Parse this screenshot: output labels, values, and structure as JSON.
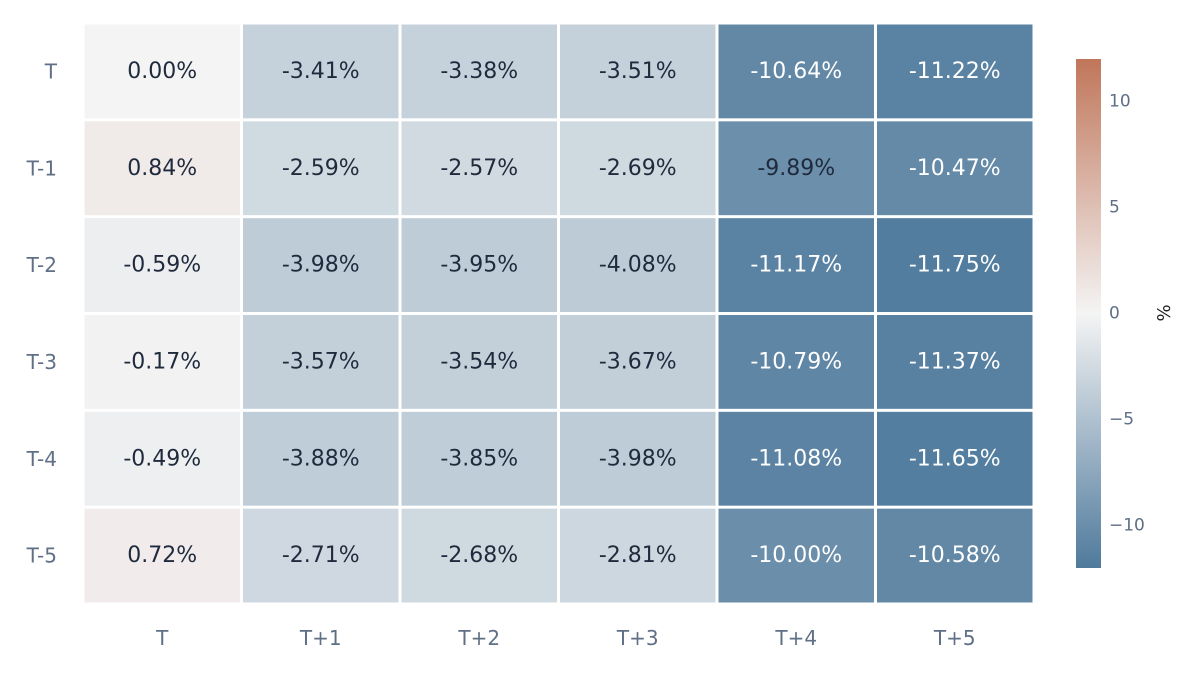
{
  "chart_data": {
    "type": "heatmap",
    "title": "",
    "xlabel": "",
    "ylabel": "",
    "x_labels": [
      "T",
      "T+1",
      "T+2",
      "T+3",
      "T+4",
      "T+5"
    ],
    "y_labels": [
      "T",
      "T-1",
      "T-2",
      "T-3",
      "T-4",
      "T-5"
    ],
    "values": [
      [
        0.0,
        -3.41,
        -3.38,
        -3.51,
        -10.64,
        -11.22
      ],
      [
        0.84,
        -2.59,
        -2.57,
        -2.69,
        -9.89,
        -10.47
      ],
      [
        -0.59,
        -3.98,
        -3.95,
        -4.08,
        -11.17,
        -11.75
      ],
      [
        -0.17,
        -3.57,
        -3.54,
        -3.67,
        -10.79,
        -11.37
      ],
      [
        -0.49,
        -3.88,
        -3.85,
        -3.98,
        -11.08,
        -11.65
      ],
      [
        0.72,
        -2.71,
        -2.68,
        -2.81,
        -10.0,
        -10.58
      ]
    ],
    "cell_labels": [
      [
        "0.00%",
        "-3.41%",
        "-3.38%",
        "-3.51%",
        "-10.64%",
        "-11.22%"
      ],
      [
        "0.84%",
        "-2.59%",
        "-2.57%",
        "-2.69%",
        "-9.89%",
        "-10.47%"
      ],
      [
        "-0.59%",
        "-3.98%",
        "-3.95%",
        "-4.08%",
        "-11.17%",
        "-11.75%"
      ],
      [
        "-0.17%",
        "-3.57%",
        "-3.54%",
        "-3.67%",
        "-10.79%",
        "-11.37%"
      ],
      [
        "-0.49%",
        "-3.88%",
        "-3.85%",
        "-3.98%",
        "-11.08%",
        "-11.65%"
      ],
      [
        "0.72%",
        "-2.71%",
        "-2.68%",
        "-2.81%",
        "-10.00%",
        "-10.58%"
      ]
    ],
    "colorbar": {
      "label": "%",
      "range": [
        -12,
        12
      ],
      "ticks": [
        10,
        5,
        0,
        -5,
        -10
      ],
      "tick_labels": [
        "10",
        "5",
        "0",
        "−5",
        "−10"
      ],
      "colors": {
        "low": "#4f7a9c",
        "mid": "#f4f4f4",
        "high": "#c0765a"
      }
    },
    "text_colors": {
      "dark": "#1f2a3c",
      "light": "#ffffff"
    }
  }
}
